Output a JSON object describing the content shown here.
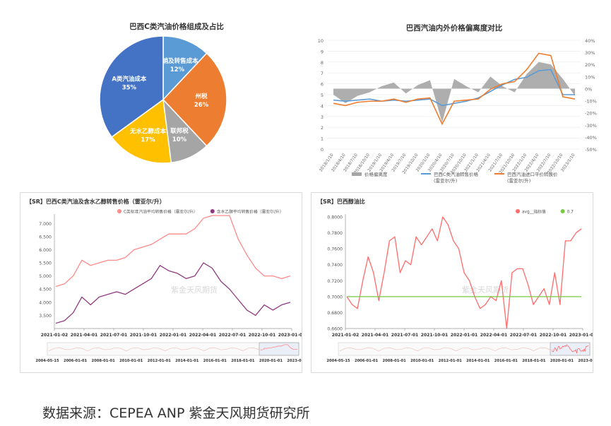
{
  "caption": "数据来源：CEPEA ANP 紫金天风期货研究所",
  "chart_data": [
    {
      "type": "pie",
      "title": "巴西C类汽油价格组成及占比",
      "slices": [
        {
          "label": "分销及转售成本",
          "value": 12,
          "value_label": "12%",
          "color": "#5b9bd5"
        },
        {
          "label": "州税",
          "value": 26,
          "value_label": "26%",
          "color": "#ed7d31"
        },
        {
          "label": "联邦税",
          "value": 10,
          "value_label": "10%",
          "color": "#a5a5a5"
        },
        {
          "label": "无水乙醇成本",
          "value": 17,
          "value_label": "17%",
          "color": "#ffc000"
        },
        {
          "label": "A类汽油成本",
          "value": 35,
          "value_label": "35%",
          "color": "#4472c4"
        }
      ]
    },
    {
      "type": "line",
      "title": "巴西汽油内外价格偏离度对比",
      "left_ticks": [
        "10",
        "9",
        "8",
        "7",
        "6",
        "5",
        "4",
        "3",
        "2",
        "1",
        "0"
      ],
      "right_ticks": [
        "40%",
        "30%",
        "20%",
        "10%",
        "0%",
        "-10%",
        "-20%",
        "-30%",
        "-40%",
        "-50%"
      ],
      "ylim_left": [
        0,
        10
      ],
      "ylim_right": [
        -0.5,
        0.4
      ],
      "x": [
        "2018/1/10",
        "2018/4/10",
        "2018/7/10",
        "2018/10/10",
        "2019/1/10",
        "2019/4/10",
        "2019/7/10",
        "2019/10/10",
        "2020/1/10",
        "2020/4/10",
        "2020/7/10",
        "2020/10/10",
        "2021/1/10",
        "2021/4/10",
        "2021/7/10",
        "2021/10/10",
        "2022/1/10",
        "2022/4/10",
        "2022/7/10",
        "2022/10/10",
        "2023/1/10"
      ],
      "series": [
        {
          "name": "价格偏离度",
          "axis": "right",
          "kind": "area",
          "color": "#a5a5a5",
          "values": [
            -0.05,
            -0.12,
            -0.06,
            -0.03,
            0.02,
            0.05,
            -0.04,
            0.03,
            0.07,
            -0.28,
            0.08,
            0.02,
            -0.03,
            0.1,
            0.02,
            -0.03,
            0.12,
            0.22,
            0.2,
            0.08,
            -0.06
          ]
        },
        {
          "name": "巴西C类汽油转售价格",
          "unit": "(雷亚尔/升)",
          "axis": "left",
          "kind": "line",
          "color": "#5b9bd5",
          "values": [
            4.5,
            4.4,
            4.5,
            4.6,
            4.4,
            4.5,
            4.4,
            4.5,
            4.6,
            4.0,
            4.2,
            4.4,
            4.7,
            5.3,
            5.9,
            6.4,
            6.6,
            7.2,
            7.3,
            5.0,
            5.0
          ]
        },
        {
          "name": "巴西汽油进口平价转换价",
          "unit": "(雷亚尔/升)",
          "axis": "left",
          "kind": "line",
          "color": "#ed7d31",
          "values": [
            4.2,
            4.0,
            4.3,
            4.4,
            4.4,
            4.6,
            4.3,
            4.6,
            4.7,
            2.3,
            4.4,
            4.5,
            4.6,
            5.5,
            6.0,
            6.2,
            7.3,
            8.8,
            8.6,
            4.8,
            4.6
          ]
        }
      ]
    },
    {
      "type": "line",
      "title": "【SR】巴西C类汽油及含水乙醇转售价格（雷亚尔/升）",
      "ylim": [
        3.0,
        7.25
      ],
      "y_ticks": [
        "7.000",
        "6.500",
        "6.000",
        "5.500",
        "5.000",
        "4.500",
        "4.000",
        "3.500"
      ],
      "x_ticks": [
        "2021-01-02",
        "2021-04-01",
        "2021-07-01",
        "2021-10-01",
        "2022-01-01",
        "2022-04-01",
        "2022-07-01",
        "2022-10-01",
        "2023-01-07"
      ],
      "watermark": "紫金天风期货",
      "navigator_ticks": [
        "2004-05-15",
        "2006-01-01",
        "2008-01-01",
        "2010-01-01",
        "2012-01-01",
        "2014-01-01",
        "2016-01-01",
        "2018-01-01",
        "2020-01-01",
        "2023-01-07"
      ],
      "series": [
        {
          "name": "C类标准汽油平均转售价格（雷亚尔/升）",
          "color": "#ff8a8a",
          "values": [
            4.6,
            4.7,
            5.0,
            5.6,
            5.4,
            5.5,
            5.6,
            5.6,
            5.7,
            6.0,
            6.1,
            6.2,
            6.4,
            6.6,
            6.6,
            6.6,
            6.8,
            7.2,
            7.3,
            7.3,
            7.3,
            6.4,
            5.8,
            5.3,
            5.0,
            5.0,
            4.9,
            5.0
          ]
        },
        {
          "name": "含水乙醇平均转售价格（雷亚尔/升）",
          "color": "#8e3a80",
          "values": [
            3.2,
            3.3,
            3.6,
            4.2,
            3.9,
            4.2,
            4.3,
            4.4,
            4.3,
            4.5,
            4.7,
            4.9,
            5.4,
            5.2,
            5.1,
            4.9,
            5.0,
            5.5,
            5.3,
            4.8,
            4.5,
            4.1,
            3.7,
            3.5,
            3.9,
            3.7,
            3.9,
            4.0
          ]
        }
      ]
    },
    {
      "type": "line",
      "title": "【SR】巴西醇油比",
      "ylim": [
        0.66,
        0.8
      ],
      "y_ticks": [
        "0.8000",
        "0.7800",
        "0.7600",
        "0.7400",
        "0.7200",
        "0.7000",
        "0.6800",
        "0.6600"
      ],
      "x_ticks": [
        "2021-01-02",
        "2021-04-01",
        "2021-07-01",
        "2021-10-01",
        "2022-01-01",
        "2022-04-01",
        "2022-07-01",
        "2022-10-01",
        "2023-01-07"
      ],
      "watermark": "紫金天风期货",
      "navigator_ticks": [
        "2004-05-15",
        "2006-01-01",
        "2008-01-01",
        "2010-01-01",
        "2012-01-01",
        "2014-01-01",
        "2016-01-01",
        "2018-01-01",
        "2020-01-01",
        "2023-01-07"
      ],
      "series": [
        {
          "name": "avg__指标值",
          "color": "#ff6b6b",
          "values": [
            0.7,
            0.69,
            0.685,
            0.72,
            0.75,
            0.73,
            0.695,
            0.73,
            0.77,
            0.775,
            0.73,
            0.745,
            0.74,
            0.775,
            0.765,
            0.775,
            0.785,
            0.77,
            0.8,
            0.79,
            0.77,
            0.76,
            0.73,
            0.72,
            0.7,
            0.685,
            0.69,
            0.7,
            0.695,
            0.72,
            0.66,
            0.73,
            0.735,
            0.735,
            0.715,
            0.69,
            0.7,
            0.71,
            0.69,
            0.73,
            0.69,
            0.77,
            0.77,
            0.78,
            0.785
          ]
        },
        {
          "name": "0.7",
          "color": "#7ac943",
          "values": [
            0.7,
            0.7
          ]
        }
      ]
    }
  ]
}
